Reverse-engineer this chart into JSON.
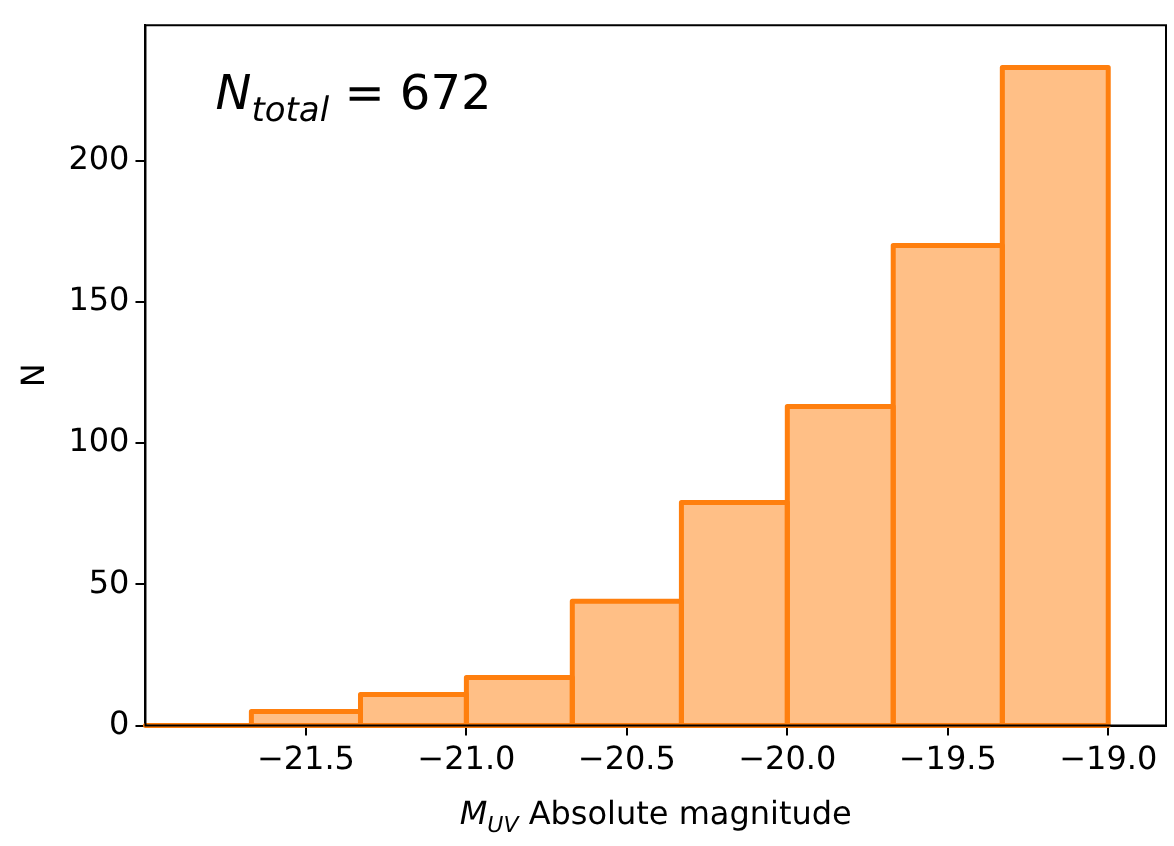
{
  "chart_data": {
    "type": "histogram",
    "xlabel": "M$_{UV}$ Absolute magnitude",
    "ylabel": "N",
    "annotations": [
      "N$_{total}$ = 672"
    ],
    "bins": [
      -22.0,
      -21.67,
      -21.33,
      -21.0,
      -20.67,
      -20.33,
      -20.0,
      -19.67,
      -19.33,
      -19.0
    ],
    "values": [
      0,
      5,
      11,
      17,
      44,
      79,
      113,
      170,
      233
    ],
    "color": "#ff7f0e",
    "xlim": [
      -22.0,
      -18.82
    ],
    "ylim": [
      0,
      248
    ],
    "xticks": [
      {
        "value": -21.5,
        "label": "−21.5"
      },
      {
        "value": -21.0,
        "label": "−21.0"
      },
      {
        "value": -20.5,
        "label": "−20.5"
      },
      {
        "value": -20.0,
        "label": "−20.0"
      },
      {
        "value": -19.5,
        "label": "−19.5"
      },
      {
        "value": -19.0,
        "label": "−19.0"
      }
    ],
    "yticks": [
      0,
      50,
      100,
      150,
      200
    ],
    "grid": false,
    "legend": false
  }
}
